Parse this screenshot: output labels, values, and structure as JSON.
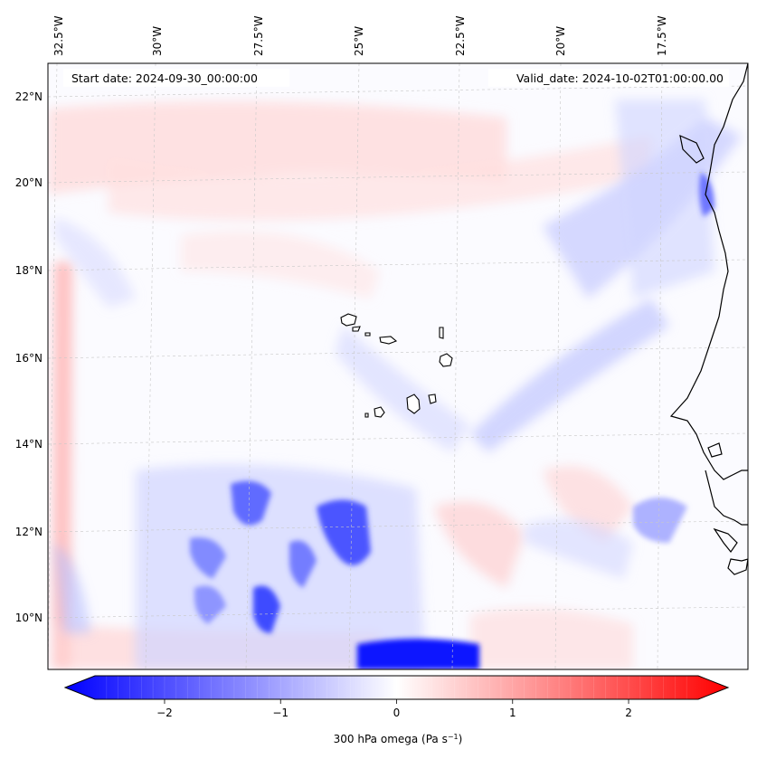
{
  "header": {
    "start_label": "Start date: 2024-09-30_00:00:00",
    "valid_label": "Valid_date: 2024-10-02T01:00:00.00"
  },
  "axes": {
    "lon_ticks": [
      "32.5°W",
      "30°W",
      "27.5°W",
      "25°W",
      "22.5°W",
      "20°W",
      "17.5°W"
    ],
    "lat_ticks": [
      "22°N",
      "20°N",
      "18°N",
      "16°N",
      "14°N",
      "12°N",
      "10°N"
    ]
  },
  "colorbar": {
    "ticks": [
      "−2",
      "−1",
      "0",
      "1",
      "2"
    ],
    "tick_values": [
      -2,
      -1,
      0,
      1,
      2
    ],
    "range": [
      -2.6,
      2.6
    ],
    "label": "300 hPa omega (Pa s",
    "label_exponent": "−1",
    "label_suffix": ")",
    "low_color": "#0000ff",
    "mid_color": "#ffffff",
    "high_color": "#ff0000"
  }
}
